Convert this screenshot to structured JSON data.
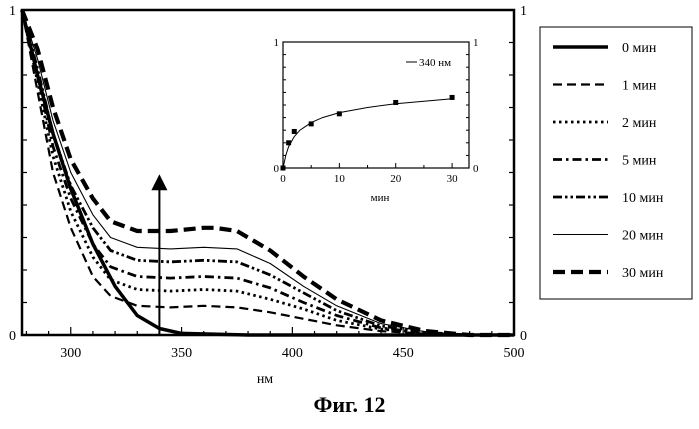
{
  "chart_data": [
    {
      "type": "line",
      "xlabel": "нм",
      "ylabel": "",
      "xlim": [
        278,
        500
      ],
      "ylim": [
        0,
        1
      ],
      "x_ticks": [
        300,
        350,
        400,
        450,
        500
      ],
      "y_tick_labels_left": [
        "0",
        "1"
      ],
      "y_tick_labels_right": [
        "0",
        "1"
      ],
      "arrow_x": 340,
      "arrow_y": [
        0,
        0.47
      ],
      "legend_placement": "right",
      "series": [
        {
          "name": "0 мин",
          "style": "solid-thick",
          "points": [
            [
              278,
              1
            ],
            [
              285,
              0.8
            ],
            [
              292,
              0.62
            ],
            [
              300,
              0.45
            ],
            [
              310,
              0.28
            ],
            [
              320,
              0.15
            ],
            [
              330,
              0.06
            ],
            [
              340,
              0.02
            ],
            [
              350,
              0.005
            ],
            [
              380,
              0
            ],
            [
              500,
              0
            ]
          ]
        },
        {
          "name": "1 мин",
          "style": "dashed",
          "points": [
            [
              278,
              1
            ],
            [
              285,
              0.75
            ],
            [
              292,
              0.5
            ],
            [
              300,
              0.33
            ],
            [
              310,
              0.18
            ],
            [
              318,
              0.12
            ],
            [
              330,
              0.09
            ],
            [
              345,
              0.085
            ],
            [
              360,
              0.09
            ],
            [
              375,
              0.085
            ],
            [
              390,
              0.07
            ],
            [
              405,
              0.05
            ],
            [
              420,
              0.03
            ],
            [
              440,
              0.012
            ],
            [
              460,
              0.004
            ],
            [
              480,
              0
            ],
            [
              500,
              0
            ]
          ]
        },
        {
          "name": "2 мин",
          "style": "dotted",
          "points": [
            [
              278,
              1
            ],
            [
              285,
              0.78
            ],
            [
              292,
              0.55
            ],
            [
              300,
              0.38
            ],
            [
              310,
              0.24
            ],
            [
              318,
              0.17
            ],
            [
              330,
              0.14
            ],
            [
              345,
              0.135
            ],
            [
              360,
              0.14
            ],
            [
              375,
              0.135
            ],
            [
              390,
              0.11
            ],
            [
              405,
              0.08
            ],
            [
              420,
              0.045
            ],
            [
              440,
              0.018
            ],
            [
              460,
              0.005
            ],
            [
              480,
              0
            ],
            [
              500,
              0
            ]
          ]
        },
        {
          "name": "5 мин",
          "style": "dash-dot",
          "points": [
            [
              278,
              1
            ],
            [
              285,
              0.8
            ],
            [
              292,
              0.58
            ],
            [
              300,
              0.42
            ],
            [
              310,
              0.28
            ],
            [
              318,
              0.21
            ],
            [
              330,
              0.18
            ],
            [
              345,
              0.175
            ],
            [
              360,
              0.18
            ],
            [
              375,
              0.175
            ],
            [
              390,
              0.145
            ],
            [
              405,
              0.1
            ],
            [
              420,
              0.06
            ],
            [
              440,
              0.022
            ],
            [
              460,
              0.006
            ],
            [
              480,
              0
            ],
            [
              500,
              0
            ]
          ]
        },
        {
          "name": "10 мин",
          "style": "dash-dot-dot",
          "points": [
            [
              278,
              1
            ],
            [
              285,
              0.82
            ],
            [
              292,
              0.62
            ],
            [
              300,
              0.46
            ],
            [
              310,
              0.33
            ],
            [
              318,
              0.26
            ],
            [
              330,
              0.23
            ],
            [
              345,
              0.225
            ],
            [
              360,
              0.23
            ],
            [
              375,
              0.225
            ],
            [
              390,
              0.185
            ],
            [
              405,
              0.13
            ],
            [
              420,
              0.075
            ],
            [
              440,
              0.028
            ],
            [
              460,
              0.008
            ],
            [
              480,
              0
            ],
            [
              500,
              0
            ]
          ]
        },
        {
          "name": "20 мин",
          "style": "thin-solid",
          "points": [
            [
              278,
              1
            ],
            [
              285,
              0.85
            ],
            [
              292,
              0.66
            ],
            [
              300,
              0.5
            ],
            [
              310,
              0.37
            ],
            [
              318,
              0.3
            ],
            [
              330,
              0.27
            ],
            [
              345,
              0.265
            ],
            [
              360,
              0.27
            ],
            [
              375,
              0.265
            ],
            [
              390,
              0.22
            ],
            [
              405,
              0.15
            ],
            [
              420,
              0.09
            ],
            [
              440,
              0.035
            ],
            [
              460,
              0.01
            ],
            [
              480,
              0
            ],
            [
              500,
              0
            ]
          ]
        },
        {
          "name": "30 мин",
          "style": "dashed-thick",
          "points": [
            [
              278,
              1
            ],
            [
              285,
              0.88
            ],
            [
              292,
              0.7
            ],
            [
              300,
              0.54
            ],
            [
              310,
              0.42
            ],
            [
              318,
              0.35
            ],
            [
              330,
              0.32
            ],
            [
              345,
              0.32
            ],
            [
              360,
              0.33
            ],
            [
              365,
              0.33
            ],
            [
              375,
              0.32
            ],
            [
              390,
              0.26
            ],
            [
              405,
              0.18
            ],
            [
              420,
              0.11
            ],
            [
              440,
              0.045
            ],
            [
              460,
              0.012
            ],
            [
              480,
              0
            ],
            [
              500,
              0
            ]
          ]
        }
      ]
    },
    {
      "type": "scatter",
      "xlabel": "мин",
      "xlim": [
        0,
        33
      ],
      "ylim": [
        0,
        1
      ],
      "x_ticks": [
        0,
        10,
        20,
        30
      ],
      "y_tick_labels_left": [
        "0",
        "1"
      ],
      "y_tick_labels_right": [
        "0",
        "1"
      ],
      "series": [
        {
          "name": "340 нм",
          "points": [
            [
              0,
              0
            ],
            [
              1,
              0.2
            ],
            [
              2,
              0.29
            ],
            [
              5,
              0.35
            ],
            [
              10,
              0.43
            ],
            [
              20,
              0.52
            ],
            [
              30,
              0.56
            ]
          ],
          "fit": [
            [
              0,
              0
            ],
            [
              0.5,
              0.1
            ],
            [
              1,
              0.17
            ],
            [
              2,
              0.25
            ],
            [
              3,
              0.3
            ],
            [
              5,
              0.36
            ],
            [
              7,
              0.4
            ],
            [
              10,
              0.44
            ],
            [
              15,
              0.48
            ],
            [
              20,
              0.51
            ],
            [
              25,
              0.53
            ],
            [
              30,
              0.55
            ]
          ]
        }
      ]
    }
  ],
  "caption": "Фиг. 12"
}
